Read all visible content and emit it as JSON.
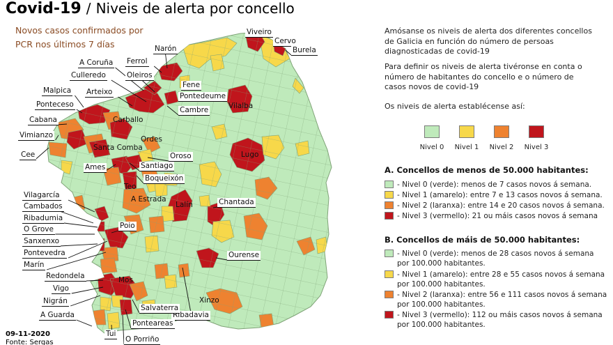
{
  "header": {
    "title_bold": "Covid-19",
    "title_sep": "/",
    "title_rest": "Niveis de alerta por concello",
    "subtitle": "Novos casos confirmados por PCR nos últimos 7 días"
  },
  "colors": {
    "nivel_0": "#bfeabb",
    "nivel_1": "#f7d84a",
    "nivel_2": "#ee8230",
    "nivel_3": "#c0151c",
    "border": "#7fa377",
    "title_text": "#000000",
    "subtitle_text": "#8a4b23"
  },
  "map": {
    "labels": [
      "Viveiro",
      "Cervo",
      "Burela",
      "Narón",
      "Ferrol",
      "A Coruña",
      "Oleiros",
      "Culleredo",
      "Fene",
      "Pontedeume",
      "Malpica",
      "Arteixo",
      "Vilalba",
      "Cambre",
      "Ponteceso",
      "Carballo",
      "Cabana",
      "Vimianzo",
      "Santa Comba",
      "Ordes",
      "Cee",
      "Lugo",
      "Oroso",
      "Ames",
      "Santiago",
      "Boqueixón",
      "Teo",
      "A Estrada",
      "Vilagarcía",
      "Lalín",
      "Chantada",
      "Cambados",
      "Ribadumia",
      "O Grove",
      "Poio",
      "Sanxenxo",
      "Pontevedra",
      "Ourense",
      "Marín",
      "Ribadavia",
      "Redondela",
      "Mos",
      "Vigo",
      "Nigrán",
      "Xinzo",
      "Salvaterra",
      "A Guarda",
      "Ponteareas",
      "Tui",
      "O Porriño"
    ]
  },
  "footer": {
    "date": "09-11-2020",
    "source": "Fonte: Sergas"
  },
  "intro": {
    "p1": "Amósanse os niveis de alerta dos diferentes concellos de Galicia en función do número de persoas diagnosticadas de covid-19",
    "p2": "Para definir os niveis de alerta tivéronse en conta o número de habitantes do concello e o número de casos novos de covid-19",
    "p3": "Os niveis de alerta establécense así:"
  },
  "swatches": [
    "Nivel 0",
    "Nivel 1",
    "Nivel 2",
    "Nivel 3"
  ],
  "section_a": {
    "heading": "A. Concellos de menos de 50.000 habitantes:",
    "items": [
      "- Nivel 0 (verde): menos de 7 casos novos á semana.",
      "- Nivel 1 (amarelo): entre 7 e 13 casos novos á semana.",
      "- Nivel 2 (laranxa): entre 14 e 20 casos novos á semana.",
      "- Nivel 3 (vermello): 21 ou máis casos novos á semana"
    ]
  },
  "section_b": {
    "heading": "B. Concellos de máis de 50.000 habitantes:",
    "items": [
      "- Nivel 0 (verde): menos de 28 casos novos á semana por 100.000 habitantes.",
      "- Nivel 1 (amarelo): entre 28 e 55 casos novos á semana por 100.000 habitantes.",
      "- Nivel 2 (laranxa): entre 56 e 111 casos novos á semana por 100.000 habitantes.",
      "- Nivel 3 (vermello): 112 ou máis casos novos á semana por 100.000 habitantes."
    ]
  }
}
